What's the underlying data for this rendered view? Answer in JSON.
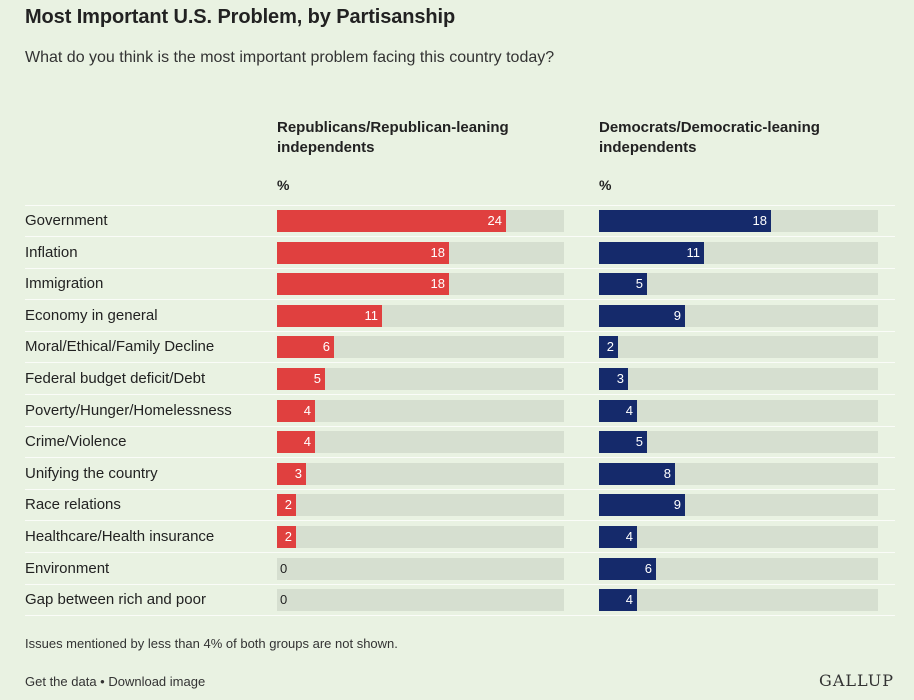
{
  "title": "Most Important U.S. Problem, by Partisanship",
  "subtitle": "What do you think is the most important problem facing this country today?",
  "footnote": "Issues mentioned by less than 4% of both groups are not shown.",
  "links": {
    "get_data": "Get the data",
    "separator": " • ",
    "download": "Download image"
  },
  "logo": "GALLUP",
  "colors": {
    "republican": "#e0403f",
    "democrat": "#152a6b",
    "track": "#d6dfd0",
    "background": "#e9f2e2"
  },
  "chart_data": {
    "type": "bar",
    "orientation": "horizontal",
    "unit": "%",
    "xlim": [
      0,
      30
    ],
    "categories": [
      "Government",
      "Inflation",
      "Immigration",
      "Economy in general",
      "Moral/Ethical/Family Decline",
      "Federal budget deficit/Debt",
      "Poverty/Hunger/Homelessness",
      "Crime/Violence",
      "Unifying the country",
      "Race relations",
      "Healthcare/Health insurance",
      "Environment",
      "Gap between rich and poor"
    ],
    "series": [
      {
        "name": "Republicans/Republican-leaning independents",
        "unit_label": "%",
        "color": "#e0403f",
        "values": [
          24,
          18,
          18,
          11,
          6,
          5,
          4,
          4,
          3,
          2,
          2,
          0,
          0
        ]
      },
      {
        "name": "Democrats/Democratic-leaning independents",
        "unit_label": "%",
        "color": "#152a6b",
        "values": [
          18,
          11,
          5,
          9,
          2,
          3,
          4,
          5,
          8,
          9,
          4,
          6,
          4
        ]
      }
    ]
  }
}
